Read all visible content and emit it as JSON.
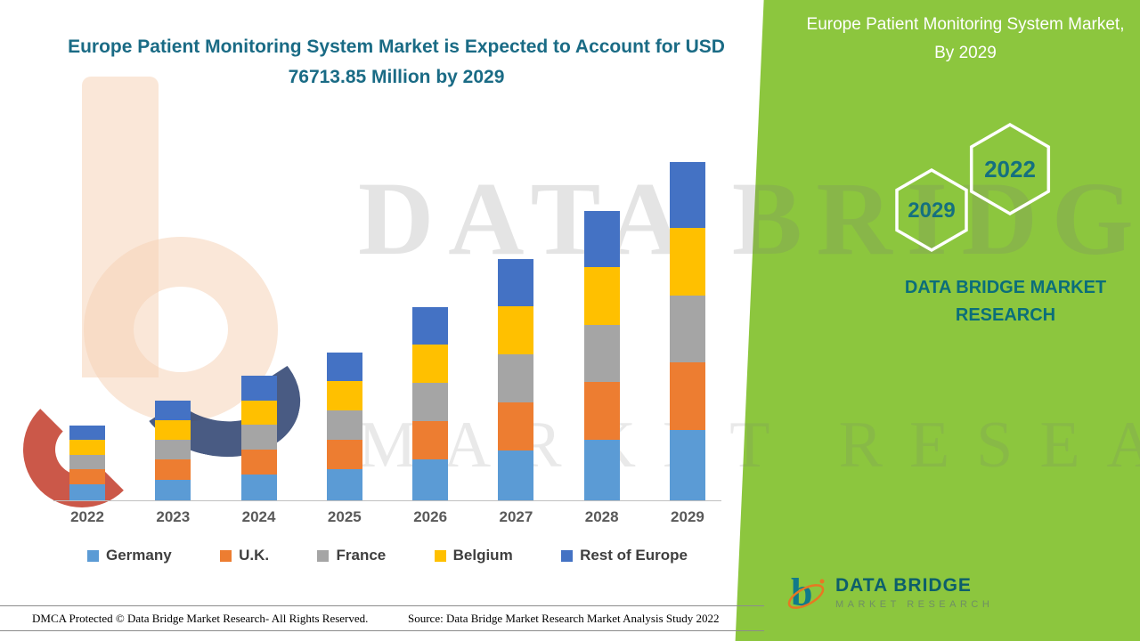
{
  "header": {
    "title": "Europe Patient Monitoring System Market is Expected to Account for USD 76713.85 Million by 2029"
  },
  "green_panel": {
    "title": "Europe Patient Monitoring System Market, By 2029",
    "hexagon_left": "2029",
    "hexagon_right": "2022",
    "brand": "DATA BRIDGE MARKET RESEARCH",
    "green_color": "#8CC63E",
    "brand_color": "#0B6E7A"
  },
  "watermark": {
    "line1": "DATA BRIDGE",
    "line2": "MARKET RESEARCH"
  },
  "footer": {
    "dmca": "DMCA Protected © Data Bridge Market Research- All Rights Reserved.",
    "source": "Source: Data Bridge Market Research Market Analysis Study 2022"
  },
  "logo": {
    "name": "DATA BRIDGE",
    "subtitle": "MARKET RESEARCH"
  },
  "chart_data": {
    "type": "bar",
    "stacked": true,
    "title": "Europe Patient Monitoring System Market is Expected to Account for USD 76713.85 Million by 2029",
    "unit": "USD Million",
    "categories": [
      "2022",
      "2023",
      "2024",
      "2025",
      "2026",
      "2027",
      "2028",
      "2029"
    ],
    "series": [
      {
        "name": "Germany",
        "color": "#5B9BD5",
        "values": [
          3600,
          4700,
          5900,
          7000,
          9200,
          11400,
          13700,
          16000
        ]
      },
      {
        "name": "U.K.",
        "color": "#ED7D31",
        "values": [
          3400,
          4500,
          5600,
          6700,
          8700,
          10900,
          13100,
          15300
        ]
      },
      {
        "name": "France",
        "color": "#A5A5A5",
        "values": [
          3400,
          4500,
          5600,
          6700,
          8700,
          10900,
          13000,
          15200
        ]
      },
      {
        "name": "Belgium",
        "color": "#FFC000",
        "values": [
          3400,
          4450,
          5550,
          6600,
          8650,
          10800,
          13000,
          15200
        ]
      },
      {
        "name": "Rest of Europe",
        "color": "#4472C4",
        "values": [
          3300,
          4400,
          5550,
          6600,
          8650,
          10750,
          12850,
          15013.85
        ]
      }
    ],
    "totals_by_year": [
      17100,
      22550,
      28200,
      33600,
      43900,
      54750,
      65650,
      76713.85
    ],
    "annotations": [
      "2029 total: USD 76713.85 Million"
    ],
    "xlabel": "",
    "ylabel": "",
    "y_axis_visible": false,
    "grid": false,
    "legend_position": "bottom"
  }
}
